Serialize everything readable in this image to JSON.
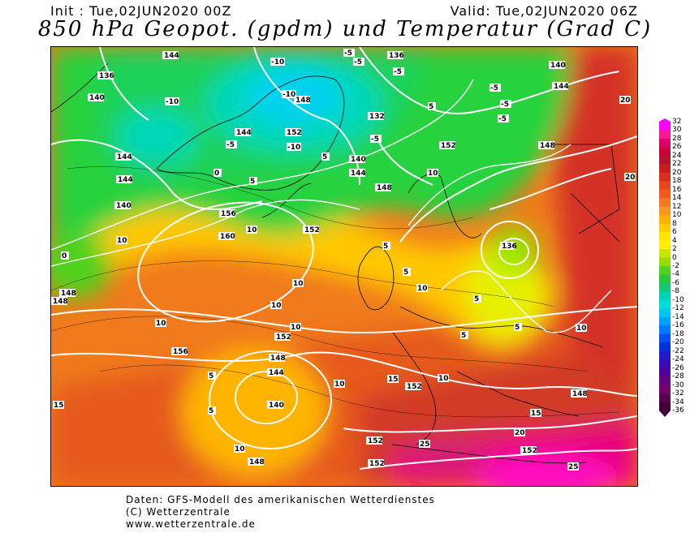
{
  "header": {
    "init": "Init : Tue,02JUN2020 00Z",
    "valid": "Valid: Tue,02JUN2020 06Z",
    "title": "850 hPa Geopot. (gpdm) und Temperatur (Grad C)"
  },
  "colorbar": {
    "ticks": [
      "32",
      "30",
      "28",
      "26",
      "24",
      "22",
      "20",
      "18",
      "16",
      "14",
      "12",
      "10",
      "8",
      "6",
      "4",
      "2",
      "0",
      "-2",
      "-4",
      "-6",
      "-8",
      "-10",
      "-12",
      "-14",
      "-16",
      "-18",
      "-20",
      "-22",
      "-24",
      "-26",
      "-28",
      "-30",
      "-32",
      "-34",
      "-36"
    ],
    "colors": [
      "#ff00ff",
      "#ff1493",
      "#e0006a",
      "#c8003c",
      "#b4142a",
      "#c81e1e",
      "#dc2d1e",
      "#e6461e",
      "#f05a1e",
      "#f57820",
      "#f99628",
      "#ffb000",
      "#ffcc00",
      "#ffe600",
      "#fff000",
      "#c8e600",
      "#96dc00",
      "#50d21e",
      "#28c83c",
      "#14c878",
      "#00d2b4",
      "#00dcdc",
      "#00c8f0",
      "#00a0ff",
      "#0078ff",
      "#0050f0",
      "#0032dc",
      "#1e1ec8",
      "#3c0ab4",
      "#50009b",
      "#640082",
      "#780069",
      "#5a0050",
      "#420038"
    ]
  },
  "map_labels": {
    "geopotential": [
      "144",
      "136",
      "140",
      "144",
      "144",
      "152",
      "148",
      "132",
      "136",
      "140",
      "144",
      "148",
      "144",
      "140",
      "136",
      "148",
      "152",
      "156",
      "160",
      "152",
      "148",
      "144",
      "140",
      "148",
      "152",
      "148",
      "152",
      "152",
      "152",
      "148",
      "156",
      "148",
      "152",
      "144",
      "140"
    ],
    "temperature": [
      "-10",
      "-5",
      "-10",
      "-5",
      "-10",
      "-5",
      "-5",
      "-5",
      "-5",
      "-10",
      "-5",
      "-5",
      "0",
      "5",
      "5",
      "0",
      "10",
      "10",
      "10",
      "10",
      "10",
      "10",
      "5",
      "5",
      "10",
      "15",
      "15",
      "15",
      "20",
      "20",
      "20",
      "25",
      "25",
      "10",
      "5",
      "10",
      "10",
      "5",
      "0",
      "10",
      "5",
      "5",
      "10",
      "5",
      "5",
      "5"
    ]
  },
  "footer": {
    "line1": "Daten: GFS-Modell des amerikanischen Wetterdienstes",
    "line2": "(C) Wetterzentrale",
    "line3": "www.wetterzentrale.de"
  }
}
